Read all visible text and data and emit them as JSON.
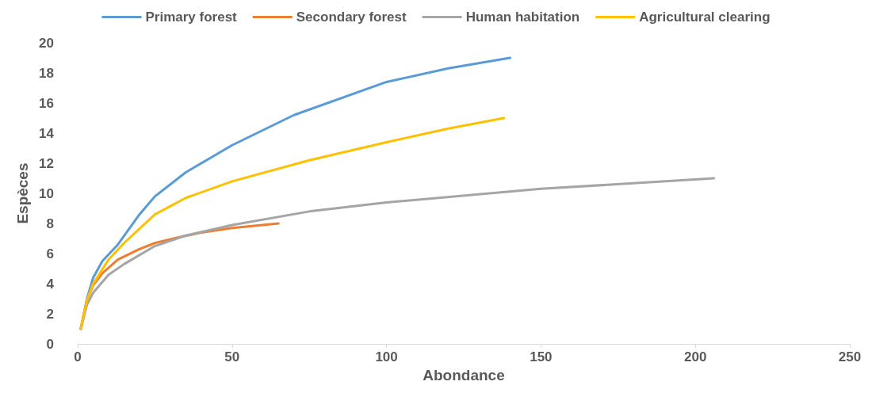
{
  "chart_data": {
    "type": "line",
    "xlabel": "Abondance",
    "ylabel": "Espèces",
    "xlim": [
      0,
      250
    ],
    "xticks": [
      0,
      50,
      100,
      150,
      200,
      250
    ],
    "ylim": [
      0,
      20
    ],
    "yticks": [
      0,
      2,
      4,
      6,
      8,
      10,
      12,
      14,
      16,
      18,
      20
    ],
    "grid": false,
    "legend": "top",
    "marker": "none",
    "line_style": "solid",
    "series": [
      {
        "name": "Primary forest",
        "color": "#5b9bd5",
        "x": [
          1,
          3,
          5,
          8,
          13,
          20,
          25,
          35,
          50,
          70,
          100,
          120,
          140
        ],
        "values": [
          1,
          3,
          4.4,
          5.5,
          6.6,
          8.6,
          9.8,
          11.4,
          13.2,
          15.2,
          17.4,
          18.3,
          19
        ]
      },
      {
        "name": "Secondary forest",
        "color": "#ed7d31",
        "x": [
          1,
          3,
          5,
          8,
          13,
          20,
          25,
          33,
          40,
          50,
          65
        ],
        "values": [
          1,
          2.9,
          3.9,
          4.7,
          5.6,
          6.3,
          6.7,
          7.1,
          7.4,
          7.7,
          8
        ]
      },
      {
        "name": "Human habitation",
        "color": "#a5a5a5",
        "x": [
          1,
          3,
          5,
          10,
          15,
          25,
          35,
          50,
          75,
          100,
          150,
          206
        ],
        "values": [
          1,
          2.6,
          3.4,
          4.6,
          5.3,
          6.5,
          7.2,
          7.9,
          8.8,
          9.4,
          10.3,
          11
        ]
      },
      {
        "name": "Agricultural clearing",
        "color": "#ffc000",
        "x": [
          1,
          3,
          5,
          10,
          15,
          25,
          35,
          50,
          75,
          100,
          120,
          138
        ],
        "values": [
          1,
          2.9,
          4,
          5.6,
          6.7,
          8.6,
          9.7,
          10.8,
          12.2,
          13.4,
          14.3,
          15
        ]
      }
    ]
  }
}
